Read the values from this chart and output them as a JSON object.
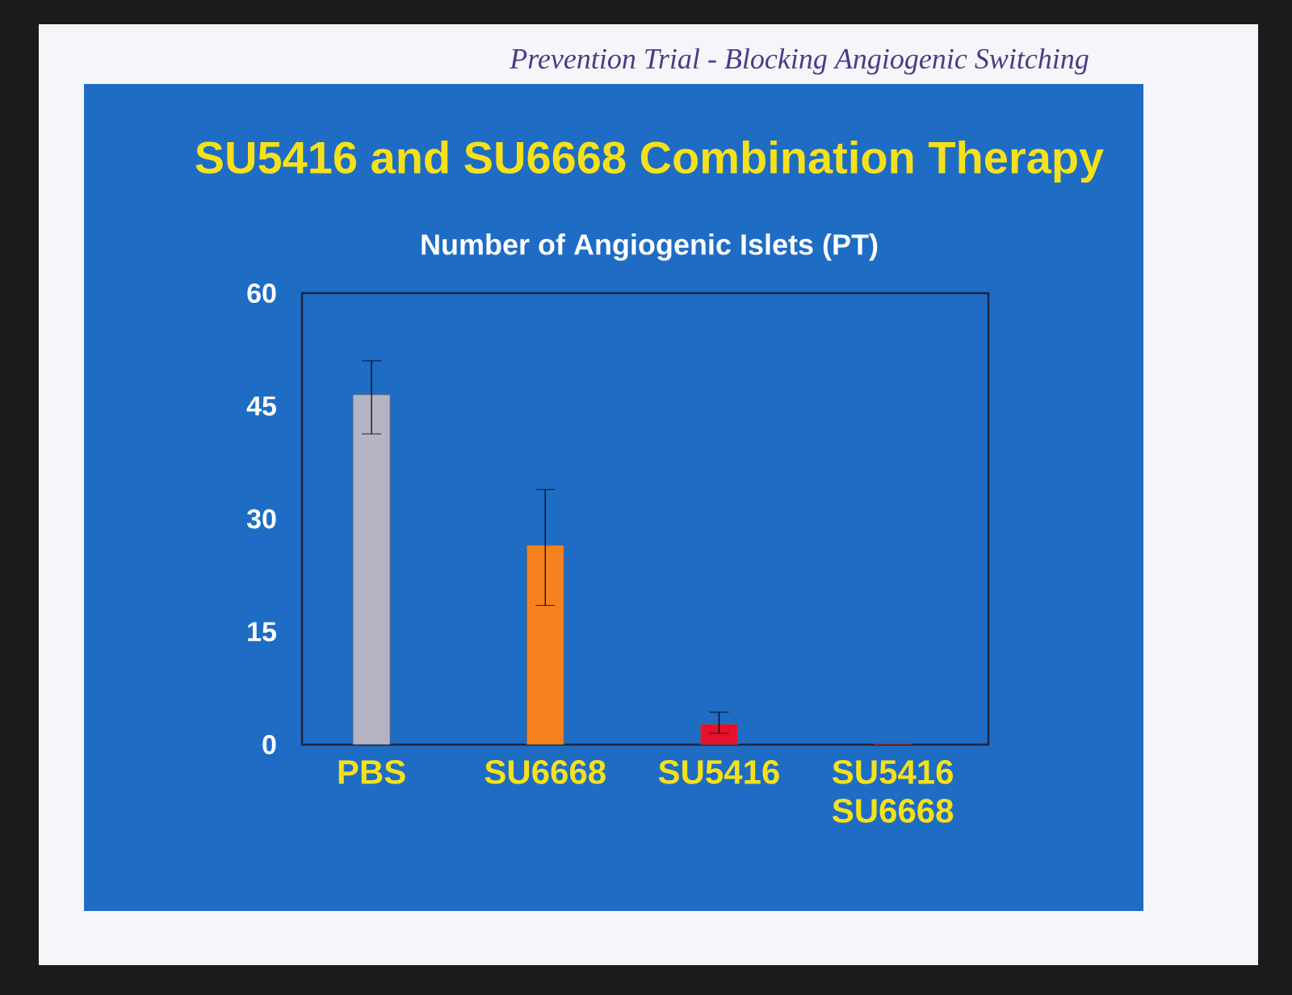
{
  "chart_data": {
    "type": "bar",
    "title": "SU5416 and SU6668 Combination Therapy",
    "subtitle": "Number of Angiogenic Islets (PT)",
    "annotations": [
      "Prevention Trial - Blocking Angiogenic Switching"
    ],
    "categories": [
      "PBS",
      "SU6668",
      "SU5416",
      "SU5416 SU6668"
    ],
    "values": [
      46.5,
      26.5,
      2.7,
      0.2
    ],
    "errors": [
      [
        41.3,
        51.0
      ],
      [
        18.5,
        33.9
      ],
      [
        1.5,
        4.3
      ],
      null
    ],
    "colors": [
      "#b4b4c4",
      "#f5821f",
      "#e8102c",
      "#c0102c"
    ],
    "ylim": [
      0,
      60
    ],
    "yticks": [
      0,
      15,
      30,
      45,
      60
    ]
  }
}
